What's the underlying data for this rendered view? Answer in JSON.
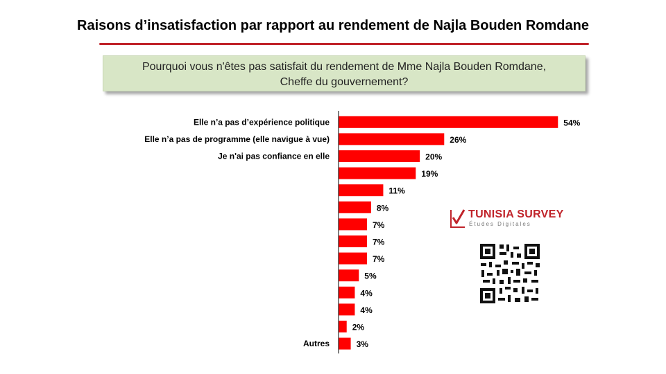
{
  "header": {
    "title": "Raisons d’insatisfaction par rapport au rendement de Najla Bouden Romdane"
  },
  "question": {
    "line1": "Pourquoi vous n'êtes pas satisfait du rendement de Mme Najla Bouden Romdane,",
    "line2": "Cheffe du gouvernement?"
  },
  "brand": {
    "name": "TUNISIA SURVEY",
    "tagline": "Études Digitales",
    "accent_color": "#c0232a"
  },
  "qr_code": {
    "icon": "qr-code-icon"
  },
  "chart_data": {
    "type": "bar",
    "orientation": "horizontal",
    "categories": [
      "Elle n’a pas d’expérience politique",
      "Elle n’a pas de programme (elle navigue à vue)",
      "Je n'ai pas confiance en elle",
      "",
      "",
      "",
      "",
      "",
      "",
      "",
      "",
      "",
      "",
      "Autres"
    ],
    "values": [
      54,
      26,
      20,
      19,
      11,
      8,
      7,
      7,
      7,
      5,
      4,
      4,
      2,
      3
    ],
    "value_labels": [
      "54%",
      "26%",
      "20%",
      "19%",
      "11%",
      "8%",
      "7%",
      "7%",
      "7%",
      "5%",
      "4%",
      "4%",
      "2%",
      "3%"
    ],
    "unit": "%",
    "bar_color": "#ff0000",
    "xlim": [
      0,
      56
    ],
    "grid": false,
    "legend": "none"
  }
}
